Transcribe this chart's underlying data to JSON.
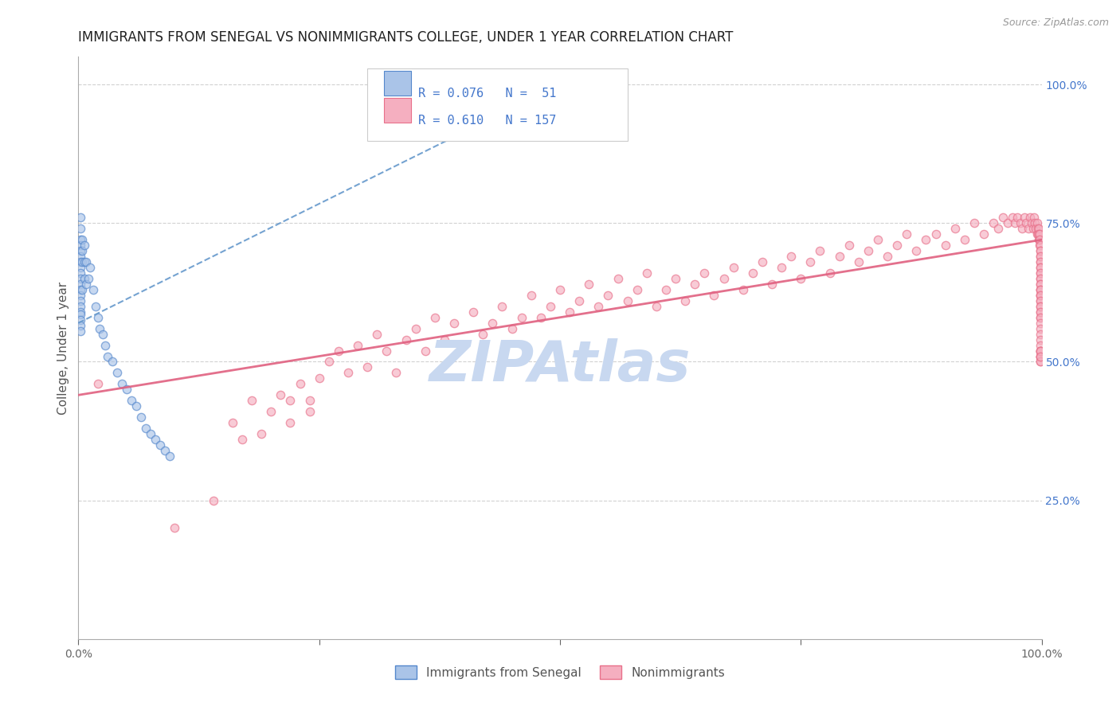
{
  "title": "IMMIGRANTS FROM SENEGAL VS NONIMMIGRANTS COLLEGE, UNDER 1 YEAR CORRELATION CHART",
  "source": "Source: ZipAtlas.com",
  "ylabel": "College, Under 1 year",
  "legend_row1": {
    "R": 0.076,
    "N": 51
  },
  "legend_row2": {
    "R": 0.61,
    "N": 157
  },
  "right_yticks": [
    "100.0%",
    "75.0%",
    "50.0%",
    "25.0%"
  ],
  "right_ytick_vals": [
    1.0,
    0.75,
    0.5,
    0.25
  ],
  "xlim": [
    0,
    1
  ],
  "ylim": [
    0,
    1.05
  ],
  "watermark": "ZIPAtlas",
  "blue_scatter_x": [
    0.002,
    0.002,
    0.002,
    0.002,
    0.002,
    0.002,
    0.002,
    0.002,
    0.002,
    0.002,
    0.002,
    0.002,
    0.002,
    0.002,
    0.002,
    0.002,
    0.002,
    0.002,
    0.002,
    0.002,
    0.004,
    0.004,
    0.004,
    0.004,
    0.006,
    0.006,
    0.006,
    0.008,
    0.008,
    0.01,
    0.012,
    0.015,
    0.018,
    0.02,
    0.022,
    0.025,
    0.028,
    0.03,
    0.035,
    0.04,
    0.045,
    0.05,
    0.055,
    0.06,
    0.065,
    0.07,
    0.075,
    0.08,
    0.085,
    0.09,
    0.095
  ],
  "blue_scatter_y": [
    0.76,
    0.74,
    0.72,
    0.71,
    0.7,
    0.69,
    0.68,
    0.67,
    0.66,
    0.65,
    0.64,
    0.63,
    0.62,
    0.61,
    0.6,
    0.59,
    0.585,
    0.575,
    0.565,
    0.555,
    0.72,
    0.7,
    0.68,
    0.63,
    0.71,
    0.68,
    0.65,
    0.68,
    0.64,
    0.65,
    0.67,
    0.63,
    0.6,
    0.58,
    0.56,
    0.55,
    0.53,
    0.51,
    0.5,
    0.48,
    0.46,
    0.45,
    0.43,
    0.42,
    0.4,
    0.38,
    0.37,
    0.36,
    0.35,
    0.34,
    0.33
  ],
  "pink_scatter_x": [
    0.02,
    0.1,
    0.14,
    0.16,
    0.17,
    0.18,
    0.19,
    0.2,
    0.21,
    0.22,
    0.22,
    0.23,
    0.24,
    0.24,
    0.25,
    0.26,
    0.27,
    0.28,
    0.29,
    0.3,
    0.31,
    0.32,
    0.33,
    0.34,
    0.35,
    0.36,
    0.37,
    0.38,
    0.39,
    0.4,
    0.41,
    0.42,
    0.43,
    0.44,
    0.45,
    0.46,
    0.47,
    0.48,
    0.49,
    0.5,
    0.51,
    0.52,
    0.53,
    0.54,
    0.55,
    0.56,
    0.57,
    0.58,
    0.59,
    0.6,
    0.61,
    0.62,
    0.63,
    0.64,
    0.65,
    0.66,
    0.67,
    0.68,
    0.69,
    0.7,
    0.71,
    0.72,
    0.73,
    0.74,
    0.75,
    0.76,
    0.77,
    0.78,
    0.79,
    0.8,
    0.81,
    0.82,
    0.83,
    0.84,
    0.85,
    0.86,
    0.87,
    0.88,
    0.89,
    0.9,
    0.91,
    0.92,
    0.93,
    0.94,
    0.95,
    0.955,
    0.96,
    0.965,
    0.97,
    0.972,
    0.975,
    0.978,
    0.98,
    0.982,
    0.984,
    0.986,
    0.988,
    0.99,
    0.991,
    0.992,
    0.993,
    0.994,
    0.995,
    0.995,
    0.996,
    0.996,
    0.997,
    0.997,
    0.997,
    0.998,
    0.998,
    0.998,
    0.998,
    0.999,
    0.999,
    0.999,
    0.999,
    0.999,
    0.999,
    0.999,
    0.999,
    0.999,
    0.999,
    0.999,
    0.999,
    0.999,
    0.999,
    0.999,
    0.999,
    0.999,
    0.999,
    0.999,
    0.999,
    0.999,
    0.999,
    0.999,
    0.999,
    0.999,
    0.999,
    0.999,
    0.999,
    0.999,
    0.999,
    0.999,
    0.999,
    0.999,
    0.999,
    0.999,
    0.999,
    0.999,
    0.999,
    0.999,
    0.999,
    0.999,
    0.999,
    0.999,
    0.999
  ],
  "pink_scatter_y": [
    0.46,
    0.2,
    0.25,
    0.39,
    0.36,
    0.43,
    0.37,
    0.41,
    0.44,
    0.39,
    0.43,
    0.46,
    0.41,
    0.43,
    0.47,
    0.5,
    0.52,
    0.48,
    0.53,
    0.49,
    0.55,
    0.52,
    0.48,
    0.54,
    0.56,
    0.52,
    0.58,
    0.54,
    0.57,
    0.53,
    0.59,
    0.55,
    0.57,
    0.6,
    0.56,
    0.58,
    0.62,
    0.58,
    0.6,
    0.63,
    0.59,
    0.61,
    0.64,
    0.6,
    0.62,
    0.65,
    0.61,
    0.63,
    0.66,
    0.6,
    0.63,
    0.65,
    0.61,
    0.64,
    0.66,
    0.62,
    0.65,
    0.67,
    0.63,
    0.66,
    0.68,
    0.64,
    0.67,
    0.69,
    0.65,
    0.68,
    0.7,
    0.66,
    0.69,
    0.71,
    0.68,
    0.7,
    0.72,
    0.69,
    0.71,
    0.73,
    0.7,
    0.72,
    0.73,
    0.71,
    0.74,
    0.72,
    0.75,
    0.73,
    0.75,
    0.74,
    0.76,
    0.75,
    0.76,
    0.75,
    0.76,
    0.75,
    0.74,
    0.76,
    0.75,
    0.74,
    0.76,
    0.75,
    0.74,
    0.76,
    0.75,
    0.74,
    0.73,
    0.75,
    0.74,
    0.73,
    0.72,
    0.74,
    0.73,
    0.72,
    0.71,
    0.73,
    0.72,
    0.71,
    0.7,
    0.69,
    0.68,
    0.7,
    0.69,
    0.68,
    0.67,
    0.66,
    0.65,
    0.67,
    0.66,
    0.65,
    0.64,
    0.63,
    0.62,
    0.64,
    0.63,
    0.62,
    0.61,
    0.63,
    0.62,
    0.61,
    0.6,
    0.59,
    0.58,
    0.6,
    0.59,
    0.58,
    0.57,
    0.56,
    0.55,
    0.54,
    0.53,
    0.52,
    0.51,
    0.52,
    0.51,
    0.5,
    0.52,
    0.51,
    0.5,
    0.52,
    0.51
  ],
  "blue_line_x": [
    0.0,
    0.5
  ],
  "blue_line_y": [
    0.57,
    1.0
  ],
  "pink_line_x": [
    0.0,
    1.0
  ],
  "pink_line_y": [
    0.44,
    0.72
  ],
  "scatter_size": 55,
  "scatter_alpha": 0.65,
  "scatter_linewidth": 1.0,
  "blue_dot_color": "#aac4e8",
  "blue_dot_edge": "#5588cc",
  "pink_dot_color": "#f5afc0",
  "pink_dot_edge": "#e8708a",
  "blue_line_color": "#6699cc",
  "pink_line_color": "#e06080",
  "grid_color": "#cccccc",
  "title_fontsize": 12,
  "axis_label_fontsize": 11,
  "tick_fontsize": 10,
  "right_tick_color": "#4477cc",
  "watermark_color": "#c8d8f0",
  "watermark_fontsize": 52,
  "legend_color": "#4477cc",
  "bg_color": "#ffffff"
}
